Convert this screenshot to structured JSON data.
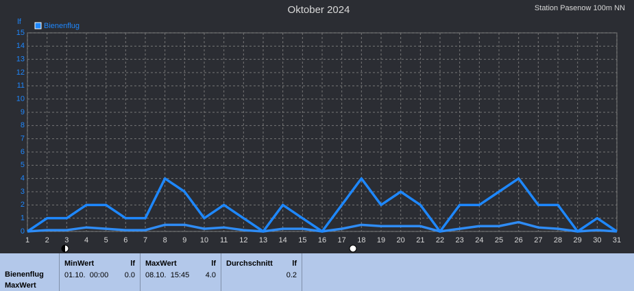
{
  "chart_data": {
    "type": "line",
    "title": "Oktober 2024",
    "station": "Station Pasenow 100m NN",
    "ylabel": "lf",
    "x": [
      1,
      2,
      3,
      4,
      5,
      6,
      7,
      8,
      9,
      10,
      11,
      12,
      13,
      14,
      15,
      16,
      17,
      18,
      19,
      20,
      21,
      22,
      23,
      24,
      25,
      26,
      27,
      28,
      29,
      30,
      31
    ],
    "xlim": [
      1,
      31
    ],
    "xticks": [
      1,
      2,
      3,
      4,
      5,
      6,
      7,
      8,
      9,
      10,
      11,
      12,
      13,
      14,
      15,
      16,
      17,
      18,
      19,
      20,
      21,
      22,
      23,
      24,
      25,
      26,
      27,
      28,
      29,
      30,
      31
    ],
    "ylim": [
      0,
      15
    ],
    "yticks": [
      0,
      1,
      2,
      3,
      4,
      5,
      6,
      7,
      8,
      9,
      10,
      11,
      12,
      13,
      14,
      15
    ],
    "grid": true,
    "legend": "top-left",
    "series": [
      {
        "name": "Bienenflug",
        "color": "#1e88ff",
        "values": [
          0,
          1,
          1,
          2,
          2,
          1,
          1,
          4,
          3,
          1,
          2,
          1,
          0,
          2,
          1,
          0,
          2,
          4,
          2,
          3,
          2,
          0,
          2,
          2,
          3,
          4,
          2,
          2,
          0,
          1,
          0
        ]
      },
      {
        "color": "#2f8cf5",
        "values": [
          0,
          0.1,
          0.1,
          0.3,
          0.2,
          0.1,
          0.1,
          0.5,
          0.5,
          0.2,
          0.3,
          0.1,
          0,
          0.2,
          0.2,
          0,
          0.2,
          0.5,
          0.4,
          0.4,
          0.4,
          0,
          0.2,
          0.4,
          0.4,
          0.7,
          0.3,
          0.2,
          0,
          0.1,
          0
        ]
      }
    ]
  },
  "summary": {
    "label": [
      "Bienenflug",
      "MaxWert"
    ],
    "columns": [
      {
        "header": "MinWert",
        "unit": "lf",
        "time": "01.10.  00:00",
        "value": "0.0"
      },
      {
        "header": "MaxWert",
        "unit": "lf",
        "time": "08.10.  15:45",
        "value": "4.0"
      },
      {
        "header": "Durchschnitt",
        "unit": "lf",
        "value": "0.2"
      }
    ]
  }
}
